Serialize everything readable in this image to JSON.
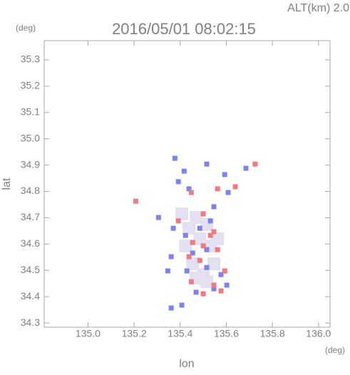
{
  "chart_data": {
    "type": "scatter",
    "title": "2016/05/01 08:02:15",
    "subtitle": "ALT(km) 2.0",
    "y_unit": "(deg)",
    "x_unit": "(deg)",
    "x_label": "lon",
    "y_label": "lat",
    "xlim": [
      134.81,
      136.05
    ],
    "ylim": [
      34.284,
      35.373
    ],
    "xticks": [
      {
        "value": 135,
        "label": "135.0"
      },
      135.2,
      135.4,
      135.6,
      135.8,
      {
        "value": 136,
        "label": "136.0"
      }
    ],
    "yticks": [
      34.3,
      34.4,
      34.5,
      34.6,
      34.7,
      34.8,
      34.9,
      {
        "value": 35,
        "label": "35.0"
      },
      35.1,
      35.2,
      35.3
    ],
    "series": [
      {
        "color": "#e4e0f2",
        "x": [
          135.469,
          135.515,
          135.438,
          135.485,
          135.531,
          135.454,
          135.5,
          135.423,
          135.562,
          135.469,
          135.515,
          135.407,
          135.546
        ],
        "y": [
          34.701,
          34.674,
          34.66,
          34.62,
          34.593,
          34.525,
          34.484,
          34.593,
          34.62,
          34.471,
          34.457,
          34.715,
          34.525
        ]
      },
      {
        "color": "#7b84ee",
        "x": [
          135.377,
          135.417,
          135.392,
          135.438,
          135.515,
          135.593,
          135.608,
          135.546,
          135.37,
          135.423,
          135.485,
          135.531,
          135.454,
          135.361,
          135.515,
          135.429,
          135.346,
          135.577,
          135.469,
          135.546,
          135.602,
          135.407,
          135.361,
          135.515,
          135.306,
          135.685
        ],
        "y": [
          34.926,
          34.877,
          34.837,
          34.81,
          34.904,
          34.864,
          34.796,
          34.742,
          34.66,
          34.633,
          34.66,
          34.688,
          34.566,
          34.552,
          34.511,
          34.498,
          34.498,
          34.484,
          34.417,
          34.43,
          34.444,
          34.368,
          34.357,
          34.579,
          34.701,
          34.888
        ]
      },
      {
        "color": "#f07a80",
        "x": [
          135.207,
          135.448,
          135.562,
          135.5,
          135.546,
          135.454,
          135.5,
          135.438,
          135.562,
          135.485,
          135.546,
          135.5,
          135.577,
          135.593,
          135.448,
          135.725,
          135.639,
          135.392,
          135.531
        ],
        "y": [
          34.763,
          34.796,
          34.81,
          34.715,
          34.647,
          34.606,
          34.593,
          34.552,
          34.579,
          34.538,
          34.444,
          34.411,
          34.422,
          34.498,
          34.457,
          34.904,
          34.818,
          34.688,
          34.633
        ]
      }
    ]
  }
}
